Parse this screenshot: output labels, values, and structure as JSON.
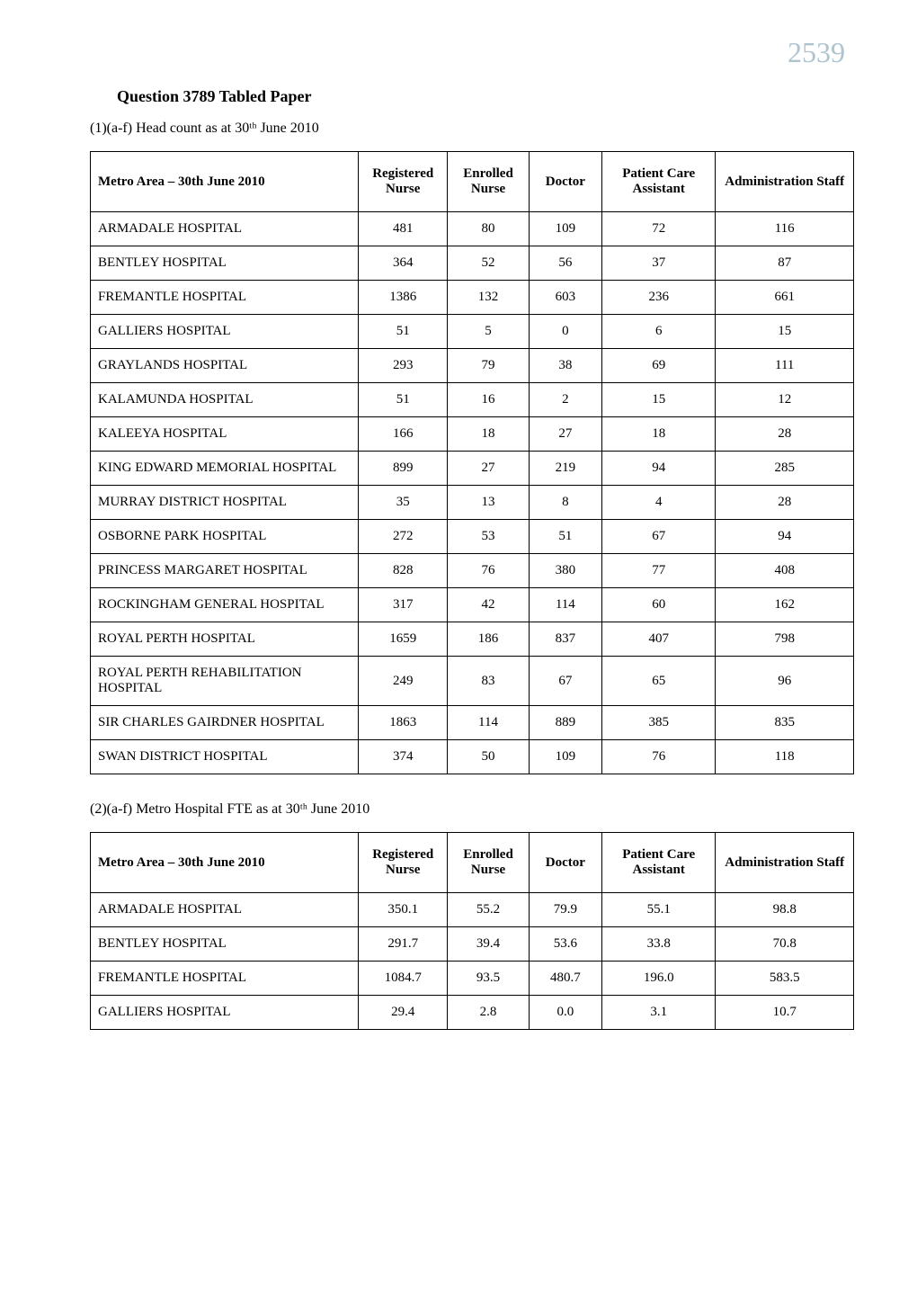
{
  "page_number": "2539",
  "title": "Question 3789 Tabled Paper",
  "section1": {
    "heading": "(1)(a-f) Head count as at 30ᵗʰ June 2010",
    "table": {
      "type": "table",
      "columns": [
        {
          "label": "Metro Area – 30th June 2010",
          "align": "left"
        },
        {
          "label": "Registered Nurse",
          "align": "center"
        },
        {
          "label": "Enrolled Nurse",
          "align": "center"
        },
        {
          "label": "Doctor",
          "align": "center"
        },
        {
          "label": "Patient Care Assistant",
          "align": "center"
        },
        {
          "label": "Administration Staff",
          "align": "center"
        }
      ],
      "rows": [
        [
          "ARMADALE HOSPITAL",
          "481",
          "80",
          "109",
          "72",
          "116"
        ],
        [
          "BENTLEY HOSPITAL",
          "364",
          "52",
          "56",
          "37",
          "87"
        ],
        [
          "FREMANTLE HOSPITAL",
          "1386",
          "132",
          "603",
          "236",
          "661"
        ],
        [
          "GALLIERS HOSPITAL",
          "51",
          "5",
          "0",
          "6",
          "15"
        ],
        [
          "GRAYLANDS HOSPITAL",
          "293",
          "79",
          "38",
          "69",
          "111"
        ],
        [
          "KALAMUNDA HOSPITAL",
          "51",
          "16",
          "2",
          "15",
          "12"
        ],
        [
          "KALEEYA HOSPITAL",
          "166",
          "18",
          "27",
          "18",
          "28"
        ],
        [
          "KING EDWARD MEMORIAL HOSPITAL",
          "899",
          "27",
          "219",
          "94",
          "285"
        ],
        [
          "MURRAY DISTRICT HOSPITAL",
          "35",
          "13",
          "8",
          "4",
          "28"
        ],
        [
          "OSBORNE PARK HOSPITAL",
          "272",
          "53",
          "51",
          "67",
          "94"
        ],
        [
          "PRINCESS MARGARET HOSPITAL",
          "828",
          "76",
          "380",
          "77",
          "408"
        ],
        [
          "ROCKINGHAM GENERAL HOSPITAL",
          "317",
          "42",
          "114",
          "60",
          "162"
        ],
        [
          "ROYAL PERTH HOSPITAL",
          "1659",
          "186",
          "837",
          "407",
          "798"
        ],
        [
          "ROYAL PERTH REHABILITATION HOSPITAL",
          "249",
          "83",
          "67",
          "65",
          "96"
        ],
        [
          "SIR CHARLES GAIRDNER HOSPITAL",
          "1863",
          "114",
          "889",
          "385",
          "835"
        ],
        [
          "SWAN DISTRICT HOSPITAL",
          "374",
          "50",
          "109",
          "76",
          "118"
        ]
      ],
      "border_color": "#000000",
      "background_color": "#ffffff",
      "header_fontweight": "bold",
      "cell_fontsize": 15,
      "header_fontsize": 15
    }
  },
  "section2": {
    "heading": "(2)(a-f) Metro Hospital FTE as at 30ᵗʰ June 2010",
    "table": {
      "type": "table",
      "columns": [
        {
          "label": "Metro Area – 30th June 2010",
          "align": "left"
        },
        {
          "label": "Registered Nurse",
          "align": "center"
        },
        {
          "label": "Enrolled Nurse",
          "align": "center"
        },
        {
          "label": "Doctor",
          "align": "center"
        },
        {
          "label": "Patient Care Assistant",
          "align": "center"
        },
        {
          "label": "Administration Staff",
          "align": "center"
        }
      ],
      "rows": [
        [
          "ARMADALE HOSPITAL",
          "350.1",
          "55.2",
          "79.9",
          "55.1",
          "98.8"
        ],
        [
          "BENTLEY HOSPITAL",
          "291.7",
          "39.4",
          "53.6",
          "33.8",
          "70.8"
        ],
        [
          "FREMANTLE HOSPITAL",
          "1084.7",
          "93.5",
          "480.7",
          "196.0",
          "583.5"
        ],
        [
          "GALLIERS HOSPITAL",
          "29.4",
          "2.8",
          "0.0",
          "3.1",
          "10.7"
        ]
      ],
      "border_color": "#000000",
      "background_color": "#ffffff",
      "header_fontweight": "bold",
      "cell_fontsize": 15,
      "header_fontsize": 15
    }
  }
}
